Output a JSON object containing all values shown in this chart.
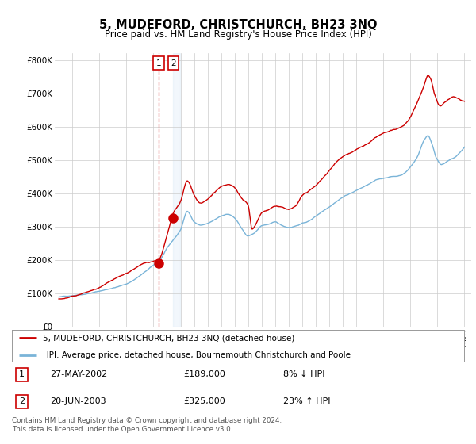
{
  "title": "5, MUDEFORD, CHRISTCHURCH, BH23 3NQ",
  "subtitle": "Price paid vs. HM Land Registry's House Price Index (HPI)",
  "ylabel_ticks": [
    "£0",
    "£100K",
    "£200K",
    "£300K",
    "£400K",
    "£500K",
    "£600K",
    "£700K",
    "£800K"
  ],
  "ytick_values": [
    0,
    100000,
    200000,
    300000,
    400000,
    500000,
    600000,
    700000,
    800000
  ],
  "ylim": [
    0,
    820000
  ],
  "xlim_start": 1994.7,
  "xlim_end": 2025.5,
  "transaction1": {
    "date_num": 2002.38,
    "price": 189000,
    "label": "1",
    "date_str": "27-MAY-2002",
    "pct": "8% ↓ HPI"
  },
  "transaction2": {
    "date_num": 2003.47,
    "price": 325000,
    "label": "2",
    "date_str": "20-JUN-2003",
    "pct": "23% ↑ HPI"
  },
  "legend_line1": "5, MUDEFORD, CHRISTCHURCH, BH23 3NQ (detached house)",
  "legend_line2": "HPI: Average price, detached house, Bournemouth Christchurch and Poole",
  "table_row1": [
    "1",
    "27-MAY-2002",
    "£189,000",
    "8% ↓ HPI"
  ],
  "table_row2": [
    "2",
    "20-JUN-2003",
    "£325,000",
    "23% ↑ HPI"
  ],
  "footer": "Contains HM Land Registry data © Crown copyright and database right 2024.\nThis data is licensed under the Open Government Licence v3.0.",
  "hpi_color": "#7ab4d8",
  "price_color": "#cc0000",
  "grid_color": "#cccccc",
  "bg_color": "#ffffff",
  "annotation_box_color": "#cc0000",
  "vline_color_1": "#cc0000",
  "shade_color": "#cce0f5"
}
